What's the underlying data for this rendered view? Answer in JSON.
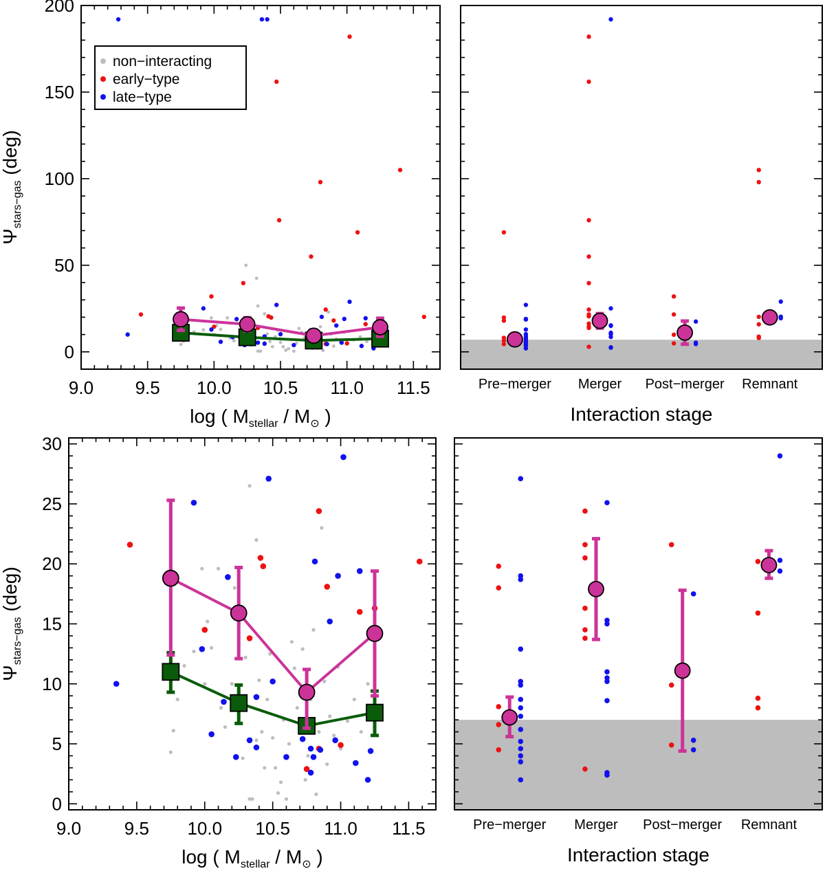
{
  "colors": {
    "non_interacting": "#bdbdbd",
    "early_type": "#ee1111",
    "late_type": "#1111ee",
    "median_all": "#cc3399",
    "median_noninteracting": "#0a5c0a",
    "shade": "#bdbdbd"
  },
  "legend": {
    "items": [
      {
        "label": "non−interacting",
        "color": "#bdbdbd"
      },
      {
        "label": "early−type",
        "color": "#ee1111"
      },
      {
        "label": "late−type",
        "color": "#1111ee"
      }
    ]
  },
  "axes": {
    "ylabel_main": "Ψ",
    "ylabel_sub": "stars−gas",
    "ylabel_unit": " (deg)",
    "xlabel_prefix": "log ( M",
    "xlabel_sub": "stellar",
    "xlabel_mid": " / M",
    "xlabel_sun": "⊙",
    "xlabel_suffix": " )",
    "stage_title": "Interaction stage"
  },
  "chart_data": [
    {
      "panel": "top-left",
      "type": "scatter",
      "xlabel": "log ( Mstellar / M⊙ )",
      "ylabel": "Ψstars−gas (deg)",
      "xlim": [
        9.0,
        11.7
      ],
      "ylim": [
        -10,
        200
      ],
      "xticks": [
        "9.0",
        "9.5",
        "10.0",
        "10.5",
        "11.0",
        "11.5"
      ],
      "yticks": [
        "0",
        "50",
        "100",
        "150",
        "200"
      ],
      "legend_position": "top-left",
      "series": [
        {
          "name": "non-interacting",
          "points": [
            [
              9.75,
              4.3
            ],
            [
              9.77,
              6.1
            ],
            [
              9.8,
              8.7
            ],
            [
              9.85,
              11.5
            ],
            [
              9.92,
              12.7
            ],
            [
              9.98,
              19.6
            ],
            [
              10.0,
              10.0
            ],
            [
              10.02,
              15.2
            ],
            [
              10.05,
              13.0
            ],
            [
              10.1,
              19.6
            ],
            [
              10.12,
              8.0
            ],
            [
              10.15,
              6.4
            ],
            [
              10.2,
              10.0
            ],
            [
              10.22,
              18.0
            ],
            [
              10.25,
              7.4
            ],
            [
              10.28,
              3.8
            ],
            [
              10.3,
              12.2
            ],
            [
              10.33,
              0.4
            ],
            [
              10.33,
              26.5
            ],
            [
              10.35,
              0.4
            ],
            [
              10.38,
              5.3
            ],
            [
              10.38,
              22.0
            ],
            [
              10.4,
              10.3
            ],
            [
              10.42,
              6.0
            ],
            [
              10.44,
              3.0
            ],
            [
              10.46,
              8.7
            ],
            [
              10.48,
              12.5
            ],
            [
              10.5,
              5.5
            ],
            [
              10.52,
              3.0
            ],
            [
              10.54,
              0.9
            ],
            [
              10.56,
              1.8
            ],
            [
              10.58,
              7.0
            ],
            [
              10.6,
              0.4
            ],
            [
              10.62,
              5.0
            ],
            [
              10.64,
              13.5
            ],
            [
              10.66,
              11.3
            ],
            [
              10.68,
              8.0
            ],
            [
              10.7,
              6.6
            ],
            [
              10.72,
              12.9
            ],
            [
              10.74,
              2.0
            ],
            [
              10.76,
              4.0
            ],
            [
              10.78,
              8.7
            ],
            [
              10.8,
              14.5
            ],
            [
              10.82,
              0.8
            ],
            [
              10.84,
              6.0
            ],
            [
              10.86,
              23.0
            ],
            [
              10.88,
              10.2
            ],
            [
              10.9,
              3.3
            ],
            [
              10.92,
              7.3
            ],
            [
              10.95,
              5.7
            ],
            [
              10.98,
              11.4
            ],
            [
              11.0,
              4.6
            ],
            [
              11.05,
              6.9
            ],
            [
              11.1,
              8.7
            ],
            [
              11.15,
              6.0
            ],
            [
              11.2,
              10.0
            ],
            [
              11.22,
              7.4
            ],
            [
              11.25,
              9.2
            ],
            [
              10.24,
              50.0
            ],
            [
              10.32,
              42.5
            ]
          ]
        },
        {
          "name": "early-type",
          "points": [
            [
              9.45,
              21.6
            ],
            [
              10.0,
              14.5
            ],
            [
              10.22,
              39.7
            ],
            [
              10.33,
              13.8
            ],
            [
              10.41,
              20.5
            ],
            [
              10.43,
              19.8
            ],
            [
              10.47,
              156.0
            ],
            [
              10.49,
              76.0
            ],
            [
              10.73,
              55.0
            ],
            [
              10.75,
              2.9
            ],
            [
              10.8,
              98.0
            ],
            [
              10.84,
              24.4
            ],
            [
              10.84,
              4.6
            ],
            [
              10.9,
              18.1
            ],
            [
              11.0,
              4.9
            ],
            [
              11.02,
              182.0
            ],
            [
              11.08,
              69.0
            ],
            [
              11.14,
              16.0
            ],
            [
              11.25,
              16.3
            ],
            [
              11.4,
              105.0
            ],
            [
              11.58,
              20.2
            ],
            [
              9.98,
              32.0
            ]
          ]
        },
        {
          "name": "late-type",
          "points": [
            [
              9.28,
              192.0
            ],
            [
              9.35,
              10.0
            ],
            [
              9.92,
              25.1
            ],
            [
              9.98,
              12.9
            ],
            [
              10.05,
              5.8
            ],
            [
              10.14,
              8.5
            ],
            [
              10.17,
              18.9
            ],
            [
              10.23,
              3.9
            ],
            [
              10.33,
              5.3
            ],
            [
              10.36,
              192.0
            ],
            [
              10.38,
              8.9
            ],
            [
              10.4,
              192.0
            ],
            [
              10.38,
              4.7
            ],
            [
              10.47,
              27.1
            ],
            [
              10.5,
              10.2
            ],
            [
              10.6,
              3.9
            ],
            [
              10.72,
              5.4
            ],
            [
              10.78,
              4.6
            ],
            [
              10.78,
              2.6
            ],
            [
              10.8,
              3.9
            ],
            [
              10.81,
              20.2
            ],
            [
              10.85,
              4.5
            ],
            [
              10.92,
              15.2
            ],
            [
              10.96,
              5.3
            ],
            [
              10.98,
              19.0
            ],
            [
              11.02,
              28.9
            ],
            [
              11.11,
              3.4
            ],
            [
              11.14,
              19.4
            ],
            [
              11.2,
              2.0
            ],
            [
              11.22,
              4.4
            ]
          ]
        },
        {
          "name": "median all",
          "x": [
            9.75,
            10.25,
            10.75,
            11.25
          ],
          "y": [
            18.8,
            15.9,
            9.3,
            14.2
          ],
          "err_lo": [
            12.4,
            12.1,
            6.3,
            9.0
          ],
          "err_hi": [
            25.3,
            19.7,
            11.2,
            19.4
          ]
        },
        {
          "name": "median non-interacting",
          "x": [
            9.75,
            10.25,
            10.75,
            11.25
          ],
          "y": [
            11.0,
            8.4,
            6.5,
            7.6
          ],
          "err_lo": [
            9.3,
            6.7,
            6.1,
            5.7
          ],
          "err_hi": [
            12.6,
            9.9,
            6.9,
            9.4
          ]
        }
      ]
    },
    {
      "panel": "top-right",
      "type": "scatter",
      "xlabel": "Interaction stage",
      "categories": [
        "Pre−merger",
        "Merger",
        "Post−merger",
        "Remnant"
      ],
      "ylim": [
        -10,
        200
      ],
      "shaded_below": 7,
      "series": [
        {
          "name": "early-type",
          "stage_values": [
            [
              19.8,
              18.0,
              8.1,
              6.6,
              4.5,
              69.0
            ],
            [
              182.0,
              156.0,
              76.0,
              55.0,
              39.7,
              24.4,
              21.6,
              20.5,
              16.3,
              14.5,
              13.8,
              2.9
            ],
            [
              32.0,
              21.6,
              9.9,
              4.9
            ],
            [
              105.0,
              98.0,
              20.2,
              15.9,
              8.8,
              8.0
            ]
          ]
        },
        {
          "name": "late-type",
          "stage_values": [
            [
              27.1,
              19.0,
              18.7,
              12.9,
              10.2,
              9.9,
              8.7,
              8.0,
              7.3,
              6.2,
              5.2,
              4.6,
              4.0,
              3.5,
              2.0
            ],
            [
              192.0,
              25.1,
              15.3,
              15.0,
              11.0,
              10.5,
              10.2,
              8.6,
              2.6,
              2.4
            ],
            [
              17.5,
              5.3,
              4.5
            ],
            [
              29.0,
              20.3,
              19.4
            ]
          ]
        },
        {
          "name": "median",
          "y": [
            7.2,
            17.9,
            11.1,
            19.9
          ],
          "err_lo": [
            5.6,
            13.7,
            4.4,
            18.8
          ],
          "err_hi": [
            8.9,
            22.1,
            17.8,
            21.1
          ]
        }
      ]
    },
    {
      "panel": "bottom-left",
      "type": "scatter",
      "xlabel": "log ( Mstellar / M⊙ )",
      "ylabel": "Ψstars−gas (deg)",
      "xlim": [
        9.0,
        11.7
      ],
      "ylim": [
        -0.5,
        30.5
      ],
      "xticks": [
        "9.0",
        "9.5",
        "10.0",
        "10.5",
        "11.0",
        "11.5"
      ],
      "yticks": [
        "0",
        "5",
        "10",
        "15",
        "20",
        "25",
        "30"
      ],
      "same_data_as": "top-left"
    },
    {
      "panel": "bottom-right",
      "type": "scatter",
      "xlabel": "Interaction stage",
      "categories": [
        "Pre−merger",
        "Merger",
        "Post−merger",
        "Remnant"
      ],
      "ylim": [
        -0.5,
        30.5
      ],
      "shaded_below": 7,
      "same_data_as": "top-right"
    }
  ]
}
